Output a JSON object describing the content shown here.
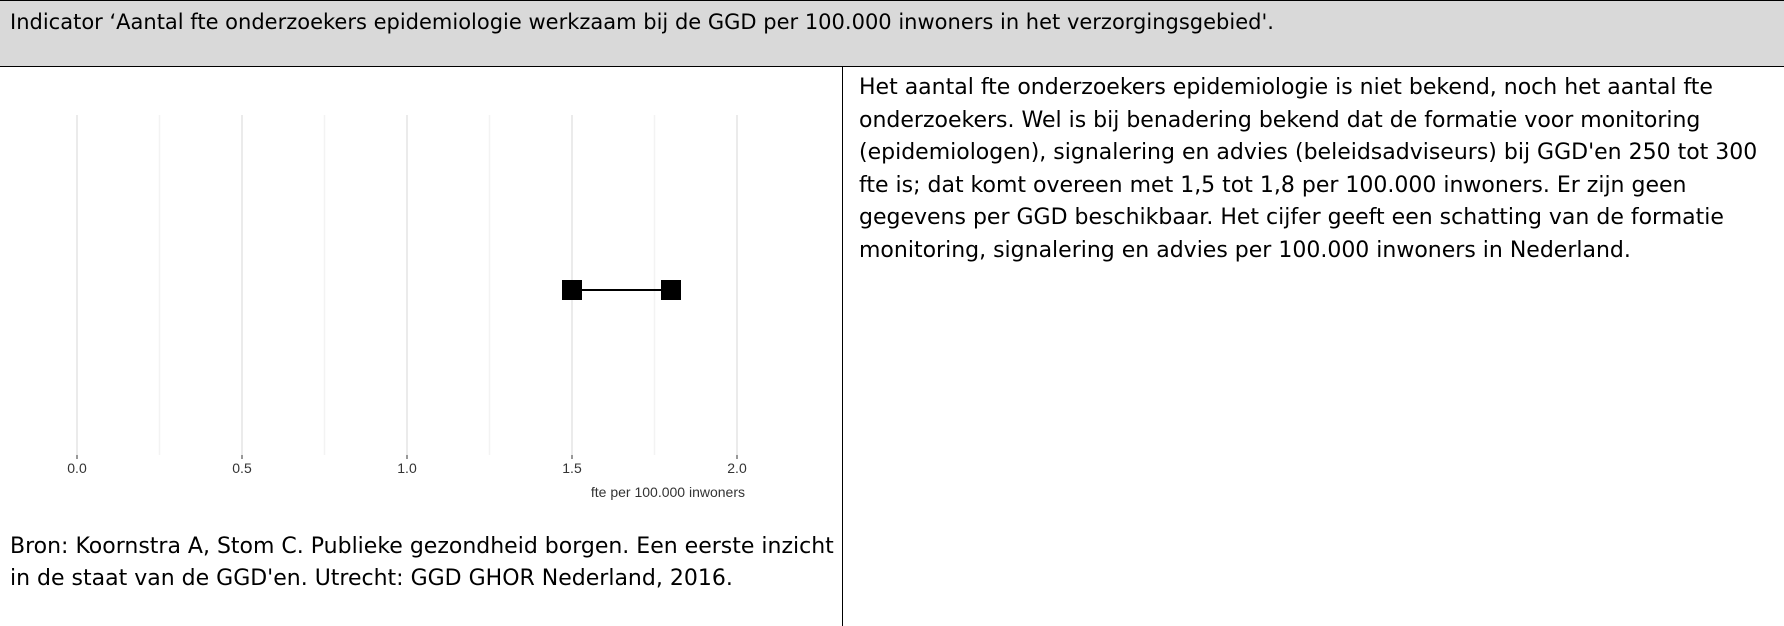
{
  "header": {
    "title": "Indicator ‘Aantal fte onderzoekers epidemiologie werkzaam bij de GGD per 100.000 inwoners in het verzorgingsgebied'."
  },
  "chart_data": {
    "type": "range",
    "values": [
      1.5,
      1.8
    ],
    "color": "#000000",
    "xlim": [
      0,
      2
    ],
    "xticks": [
      {
        "value": 0,
        "label": "0.0"
      },
      0.5,
      {
        "value": 1,
        "label": "1.0"
      },
      1.5,
      {
        "value": 2,
        "label": "2.0"
      }
    ],
    "xminor": [
      0.25,
      0.75,
      1.25,
      1.75
    ],
    "xlabel": "fte per 100.000 inwoners",
    "grid": true
  },
  "source": "Bron: Koornstra A, Stom C. Publieke gezondheid borgen. Een eerste inzicht in de staat van de GGD'en. Utrecht: GGD GHOR Nederland, 2016.",
  "description": "Het aantal fte onderzoekers epidemiologie is niet bekend, noch het aantal fte onderzoekers. Wel is bij benadering bekend dat de formatie voor monitoring (epidemiologen), signalering en advies (beleidsadviseurs) bij GGD'en 250 tot 300 fte is; dat komt overeen met 1,5 tot 1,8 per 100.000 inwoners. Er zijn geen gegevens per GGD beschikbaar. Het cijfer geeft een schatting van de formatie monitoring, signalering en advies per 100.000 inwoners in Nederland."
}
